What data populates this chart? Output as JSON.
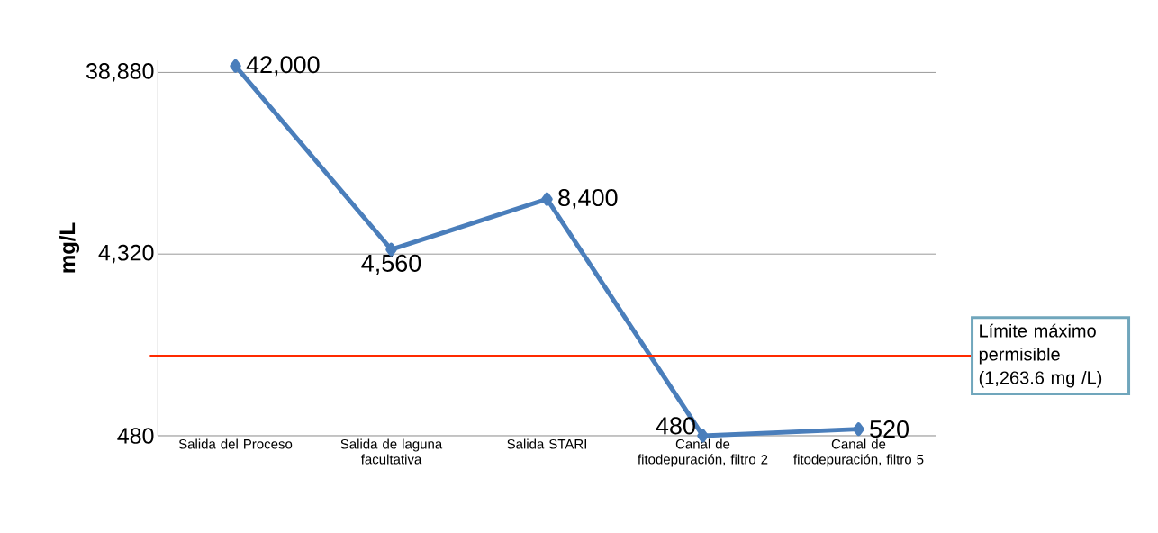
{
  "chart_data": {
    "type": "line",
    "ylabel": "mg/L",
    "categories": [
      "Salida del Proceso",
      "Salida de laguna facultativa",
      "Salida STARI",
      "Canal de fitodepuración, filtro 2",
      "Canal de fitodepuración, filtro 5"
    ],
    "series": [
      {
        "color": "#4a7ebb",
        "values": [
          42000,
          4560,
          8400,
          480,
          520
        ]
      }
    ],
    "value_labels": [
      "42,000",
      "4,560",
      "8,400",
      "480",
      "520"
    ],
    "log": "y",
    "ylim": [
      480,
      45000
    ],
    "yticks": [
      {
        "value": 480,
        "label": "480"
      },
      {
        "value": 4320,
        "label": "4,320"
      },
      {
        "value": 38880,
        "label": "38,880"
      }
    ],
    "grid": "y",
    "marker": "diamond",
    "line_style": "solid",
    "ref_lines": [
      {
        "axis": "y",
        "value": 1263.6,
        "label": "Límite máximo permisible (1,263.6 mg /L)",
        "color": "#ff2a00"
      }
    ]
  }
}
